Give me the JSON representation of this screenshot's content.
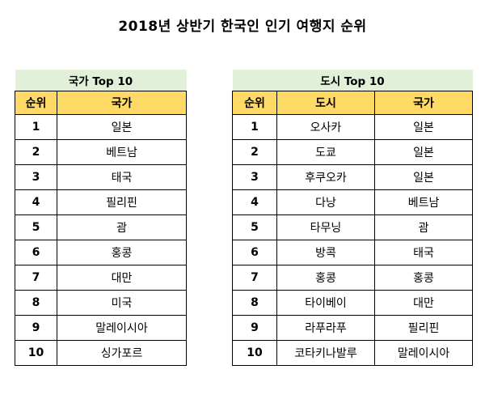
{
  "title": "2018년 상반기 한국인 인기 여행지 순위",
  "country_table": {
    "caption": "국가 Top 10",
    "headers": [
      "순위",
      "국가"
    ],
    "rows": [
      [
        "1",
        "일본"
      ],
      [
        "2",
        "베트남"
      ],
      [
        "3",
        "태국"
      ],
      [
        "4",
        "필리핀"
      ],
      [
        "5",
        "괌"
      ],
      [
        "6",
        "홍콩"
      ],
      [
        "7",
        "대만"
      ],
      [
        "8",
        "미국"
      ],
      [
        "9",
        "말레이시아"
      ],
      [
        "10",
        "싱가포르"
      ]
    ]
  },
  "city_table": {
    "caption": "도시 Top 10",
    "headers": [
      "순위",
      "도시",
      "국가"
    ],
    "rows": [
      [
        "1",
        "오사카",
        "일본"
      ],
      [
        "2",
        "도쿄",
        "일본"
      ],
      [
        "3",
        "후쿠오카",
        "일본"
      ],
      [
        "4",
        "다낭",
        "베트남"
      ],
      [
        "5",
        "타무닝",
        "괌"
      ],
      [
        "6",
        "방콕",
        "태국"
      ],
      [
        "7",
        "홍콩",
        "홍콩"
      ],
      [
        "8",
        "타이베이",
        "대만"
      ],
      [
        "9",
        "라푸라푸",
        "필리핀"
      ],
      [
        "10",
        "코타키나발루",
        "말레이시아"
      ]
    ]
  },
  "colors": {
    "caption_bg": "#e2efd9",
    "header_bg": "#ffd966",
    "border": "#000000"
  }
}
